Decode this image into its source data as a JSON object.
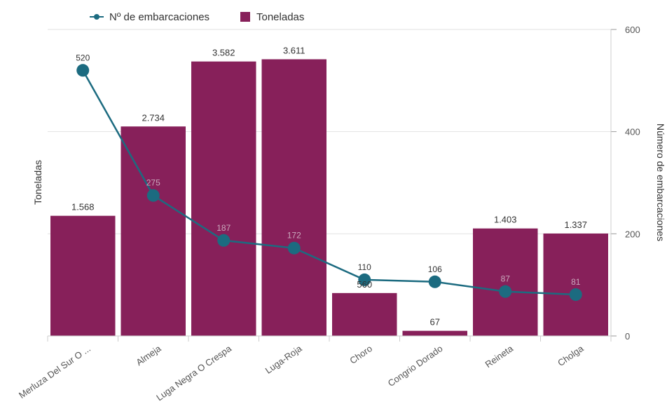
{
  "chart_data": {
    "type": "bar+line",
    "categories": [
      "Merluza Del Sur O ...",
      "Almeja",
      "Luga Negra O Crespa",
      "Luga-Roja",
      "Choro",
      "Congrio Dorado",
      "Reineta",
      "Cholga"
    ],
    "series": [
      {
        "name": "Toneladas",
        "type": "bar",
        "axis": "left",
        "color": "#87205a",
        "values": [
          1568,
          2734,
          3582,
          3611,
          560,
          67,
          1403,
          1337
        ],
        "labels": [
          "1.568",
          "2.734",
          "3.582",
          "3.611",
          "560",
          "67",
          "1.403",
          "1.337"
        ]
      },
      {
        "name": "Nº de embarcaciones",
        "type": "line",
        "axis": "right",
        "color": "#1c6b80",
        "values": [
          520,
          275,
          187,
          172,
          110,
          106,
          87,
          81
        ],
        "labels": [
          "520",
          "275",
          "187",
          "172",
          "110",
          "106",
          "87",
          "81"
        ]
      }
    ],
    "ylabel": "Toneladas",
    "ylim": [
      0,
      4000
    ],
    "y2label": "Número de embarcaciones",
    "y2lim": [
      0,
      600
    ],
    "y2ticks": [
      "0",
      "200",
      "400",
      "600"
    ],
    "grid": true,
    "legend_position": "top-left"
  }
}
